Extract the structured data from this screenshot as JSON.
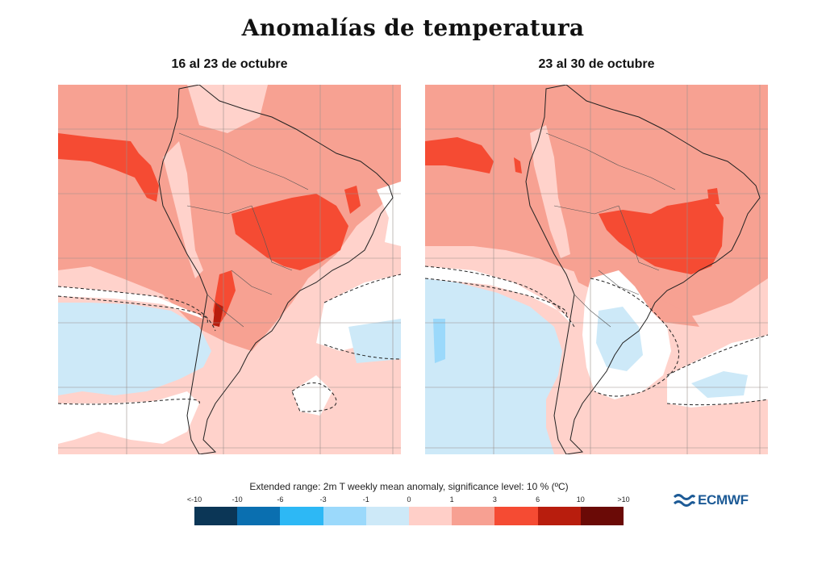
{
  "title": "Anomalías de temperatura",
  "panels": [
    {
      "subtitle": "16 al 23 de octubre"
    },
    {
      "subtitle": "23 al 30 de octubre"
    }
  ],
  "legend": {
    "caption": "Extended range: 2m T weekly mean anomaly, significance level: 10 % (ºC)",
    "ticks": [
      "<-10",
      "-10",
      "-6",
      "-3",
      "-1",
      "0",
      "1",
      "3",
      "6",
      "10",
      ">10"
    ],
    "colors": [
      "#0b3656",
      "#0a6fb0",
      "#2db8f5",
      "#9bd9fb",
      "#cde9f8",
      "#ffcfc8",
      "#f7a092",
      "#f54b33",
      "#b81d0d",
      "#6a0a06"
    ]
  },
  "logo": {
    "text": "ECMWF",
    "icon": "ecmwf-logo-icon",
    "color": "#1c5a96"
  }
}
